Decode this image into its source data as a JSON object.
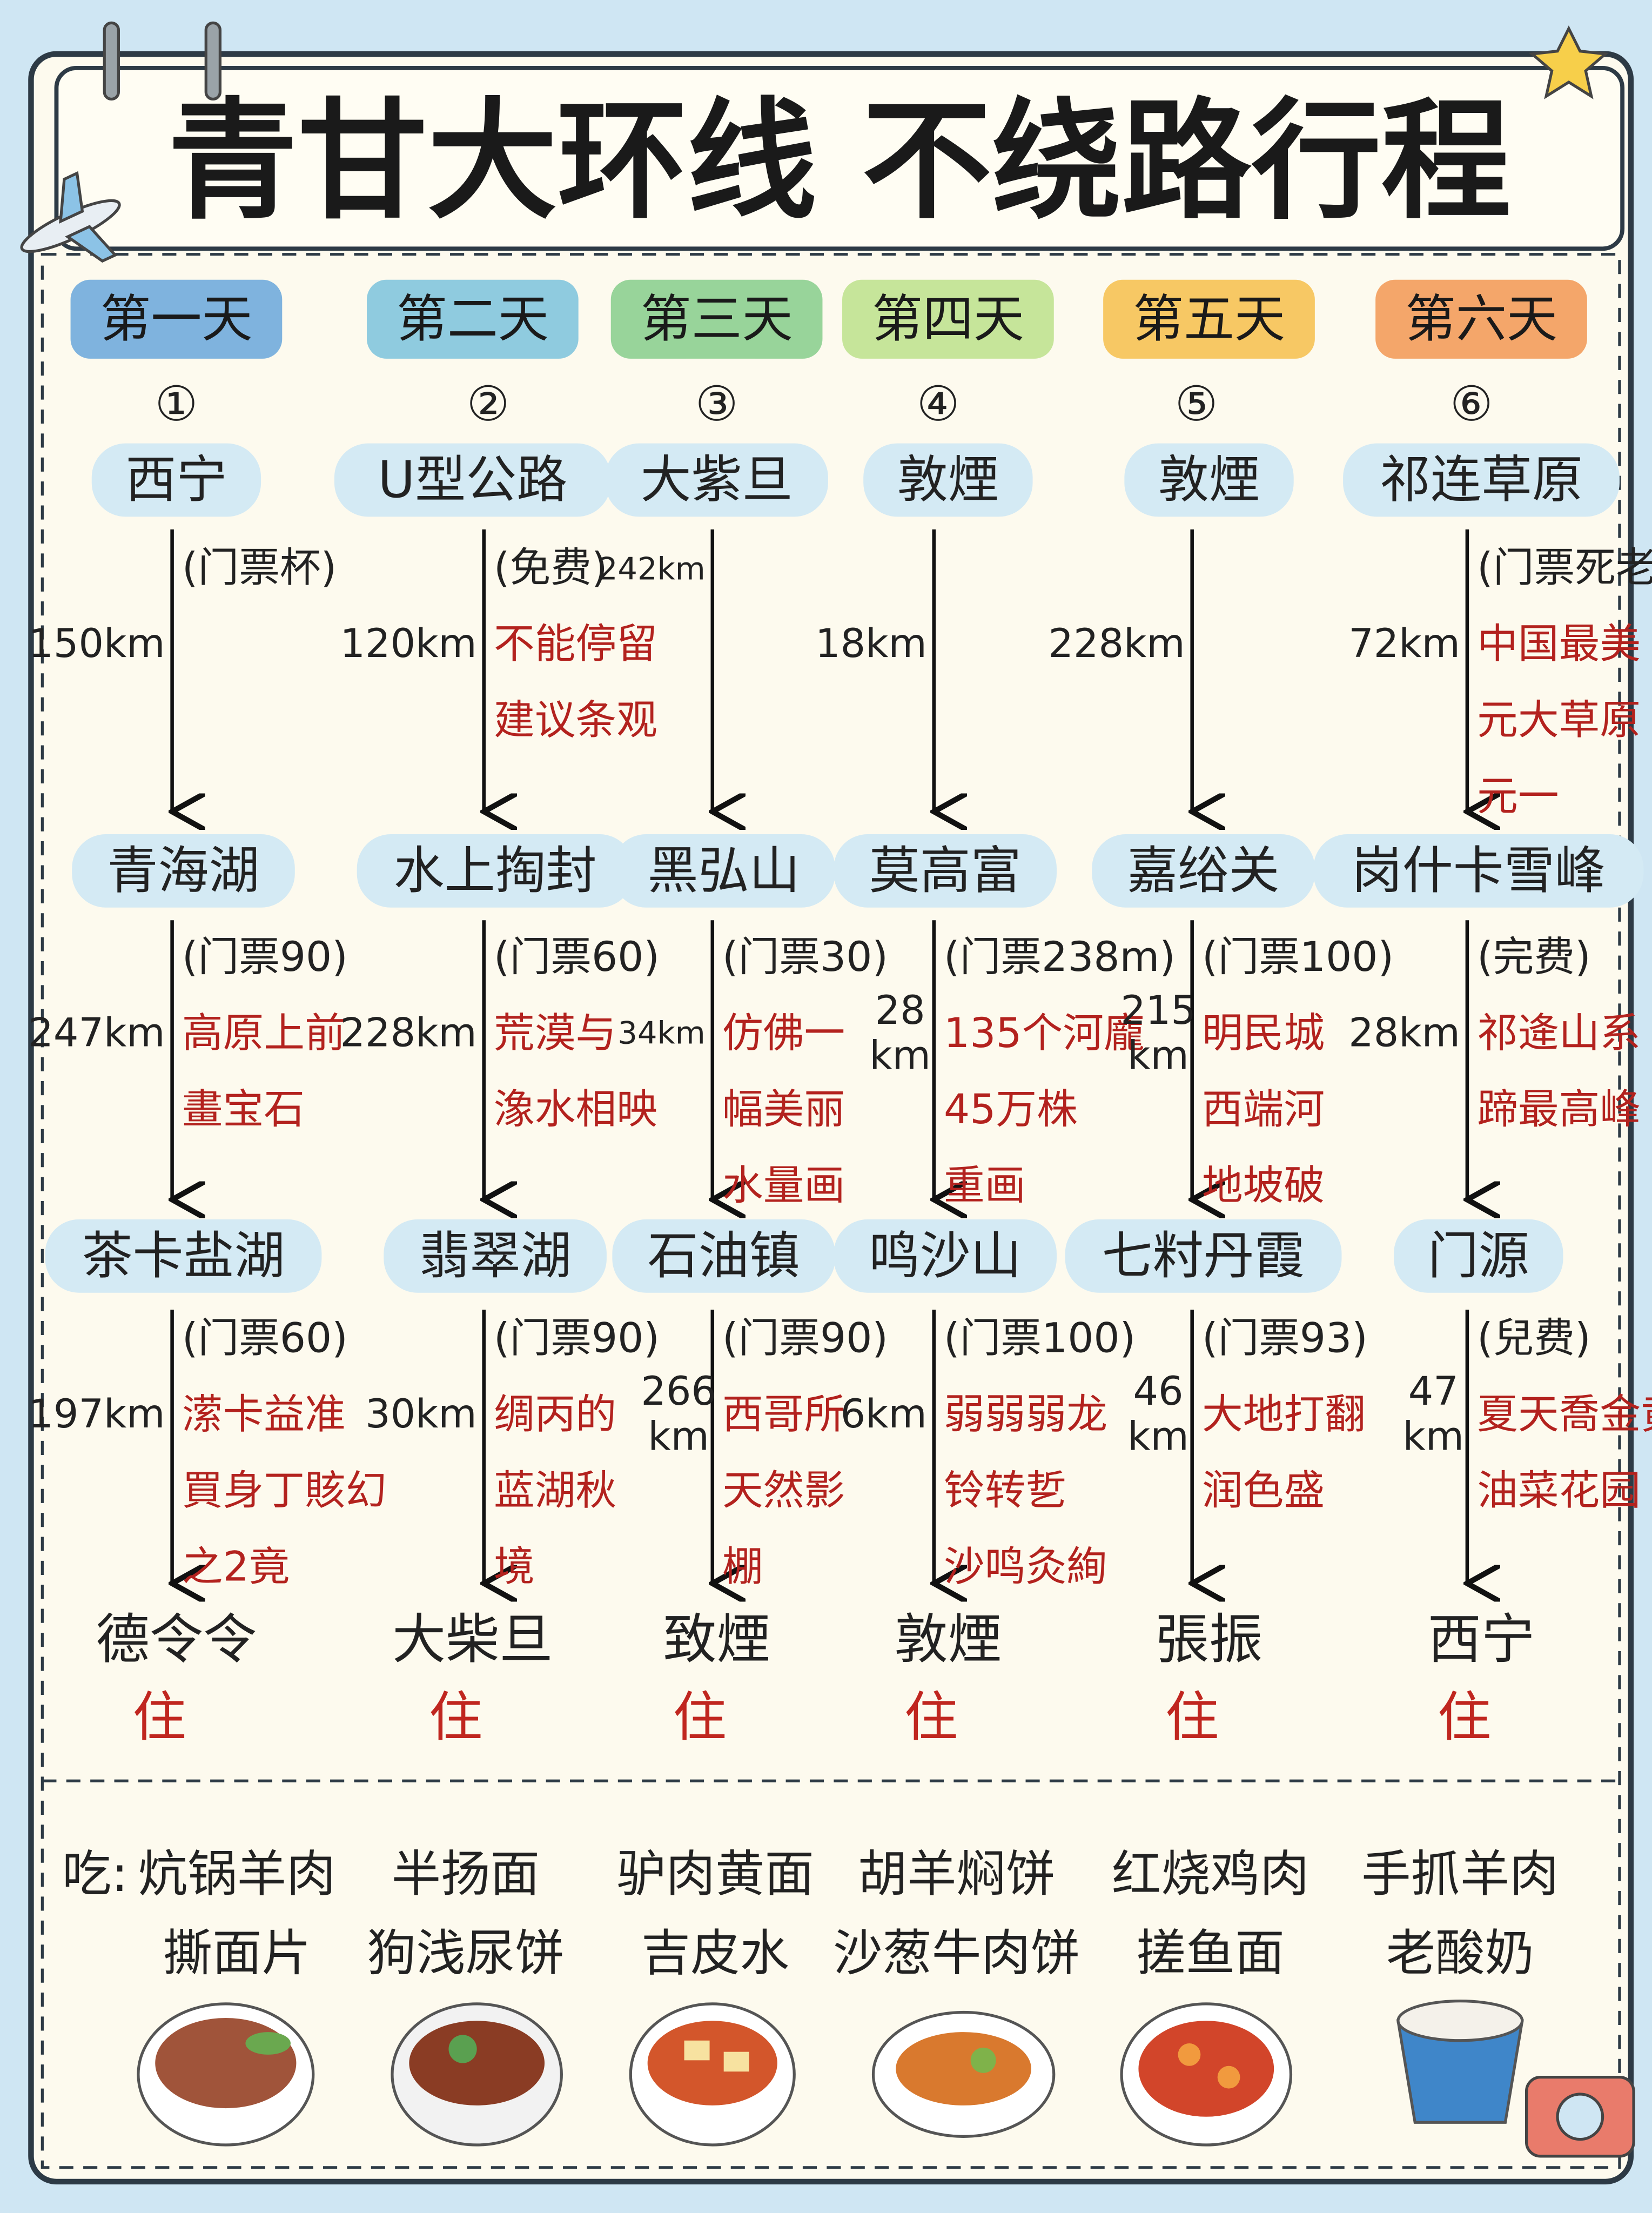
{
  "title": "青甘大环线 不绕路行程",
  "days": [
    {
      "label": "第一天",
      "number": "①",
      "stops": [
        "西宁",
        "青海湖",
        "茶卡盐湖"
      ],
      "segments": [
        {
          "distance": [
            "150km"
          ],
          "notes": [
            "(门票杯)"
          ]
        },
        {
          "distance": [
            "247km"
          ],
          "notes": [
            "(门票90)",
            "高原上前",
            "畫宝石"
          ]
        },
        {
          "distance": [
            "197km"
          ],
          "notes": [
            "(门票60)",
            "潆卡益准",
            "買身丁賅幻",
            "之2竟"
          ]
        }
      ],
      "stay": "德令令",
      "stay_label": "住"
    },
    {
      "label": "第二天",
      "number": "②",
      "stops": [
        "U型公路",
        "水上掏封",
        "翡翠湖"
      ],
      "segments": [
        {
          "distance": [
            "120km"
          ],
          "notes": [
            "(免费)",
            "不能停留",
            "建议条观"
          ]
        },
        {
          "distance": [
            "228km"
          ],
          "notes": [
            "(门票60)",
            "荒漠与",
            "潒水相映"
          ]
        },
        {
          "distance": [
            "30km"
          ],
          "notes": [
            "(门票90)",
            "绸丙的",
            "蓝湖秋",
            "境"
          ]
        }
      ],
      "stay": "大柴旦",
      "stay_label": "住"
    },
    {
      "label": "第三天",
      "number": "③",
      "stops": [
        "大紫旦",
        "黑弘山",
        "石油镇"
      ],
      "segments": [
        {
          "distance": [
            "242km"
          ],
          "notes": []
        },
        {
          "distance": [
            "34km"
          ],
          "notes": [
            "(门票30)",
            "仿佛一",
            "幅美丽",
            "水量画"
          ]
        },
        {
          "distance": [
            "266",
            "km"
          ],
          "notes": [
            "(门票90)",
            "西哥所",
            "天然影",
            "棚"
          ]
        }
      ],
      "stay": "致煙",
      "stay_label": "住"
    },
    {
      "label": "第四天",
      "number": "④",
      "stops": [
        "敦煙",
        "莫高富",
        "鸣沙山"
      ],
      "segments": [
        {
          "distance": [
            "18km"
          ],
          "notes": []
        },
        {
          "distance": [
            "28",
            "km"
          ],
          "notes": [
            "(门票238m)",
            "135个河龐",
            "45万株",
            "重画"
          ]
        },
        {
          "distance": [
            "6km"
          ],
          "notes": [
            "(门票100)",
            "弱弱弱龙",
            "铃转乴",
            "沙鸣灸絢"
          ]
        }
      ],
      "stay": "敦煙",
      "stay_label": "住"
    },
    {
      "label": "第五天",
      "number": "⑤",
      "stops": [
        "敦煙",
        "嘉绤关",
        "七籿丹霞"
      ],
      "segments": [
        {
          "distance": [
            "228km"
          ],
          "notes": []
        },
        {
          "distance": [
            "215",
            "km"
          ],
          "notes": [
            "(门票100)",
            "明民城",
            "西端河",
            "地坡破"
          ]
        },
        {
          "distance": [
            "46",
            "km"
          ],
          "notes": [
            "(门票93)",
            "大地打翻",
            "润色盛"
          ]
        }
      ],
      "stay": "張振",
      "stay_label": "住"
    },
    {
      "label": "第六天",
      "number": "⑥",
      "stops": [
        "祁连草原",
        "岗什卡雪峰",
        "门源"
      ],
      "segments": [
        {
          "distance": [
            "72km"
          ],
          "notes": [
            "(门票死老)",
            "中国最美",
            "元大草原",
            "元一"
          ]
        },
        {
          "distance": [
            "28km"
          ],
          "notes": [
            "(完费)",
            "祁逄山系",
            "蹄最高峰"
          ]
        },
        {
          "distance": [
            "47",
            "km"
          ],
          "notes": [
            "(兒费)",
            "夏天喬金黄",
            "油菜花园"
          ]
        }
      ],
      "stay": "西宁",
      "stay_label": "住"
    }
  ],
  "food": {
    "label": "吃:",
    "items": [
      [
        "炕锅羊肉",
        "撕面片"
      ],
      [
        "半扬面",
        "狗浅尿饼"
      ],
      [
        "驴肉黄面",
        "吉皮水"
      ],
      [
        "胡羊焖饼",
        "沙葱牛肉饼"
      ],
      [
        "红烧鸡肉",
        "搓鱼面"
      ],
      [
        "手抓羊肉",
        "老酸奶"
      ]
    ]
  }
}
